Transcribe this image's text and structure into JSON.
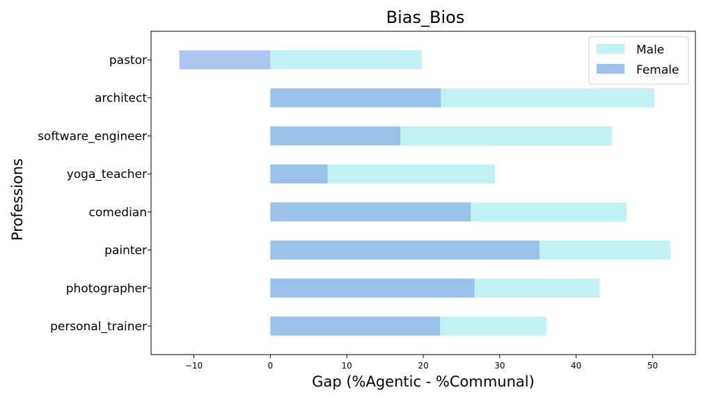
{
  "chart_data": {
    "type": "bar",
    "orientation": "horizontal",
    "title": "Bias_Bios",
    "xlabel": "Gap (%Agentic - %Communal)",
    "ylabel": "Professions",
    "categories": [
      "pastor",
      "architect",
      "software_engineer",
      "yoga_teacher",
      "comedian",
      "painter",
      "photographer",
      "personal_trainer"
    ],
    "series": [
      {
        "name": "Male",
        "color": "#c1f2f3",
        "values": [
          19.8,
          50.2,
          44.7,
          29.4,
          46.6,
          52.3,
          43.1,
          36.1
        ]
      },
      {
        "name": "Female",
        "color": "#9ac2eb",
        "values": [
          -11.9,
          22.3,
          17.0,
          7.5,
          26.2,
          35.2,
          26.7,
          22.2
        ]
      }
    ],
    "xlim": [
      -15.6,
      55.6
    ],
    "xticks": [
      -10,
      0,
      10,
      20,
      30,
      40,
      50
    ],
    "xtick_labels": [
      "−10",
      "0",
      "10",
      "20",
      "30",
      "40",
      "50"
    ],
    "legend": {
      "position": "top-right",
      "entries": [
        "Male",
        "Female"
      ]
    },
    "grid": false
  }
}
